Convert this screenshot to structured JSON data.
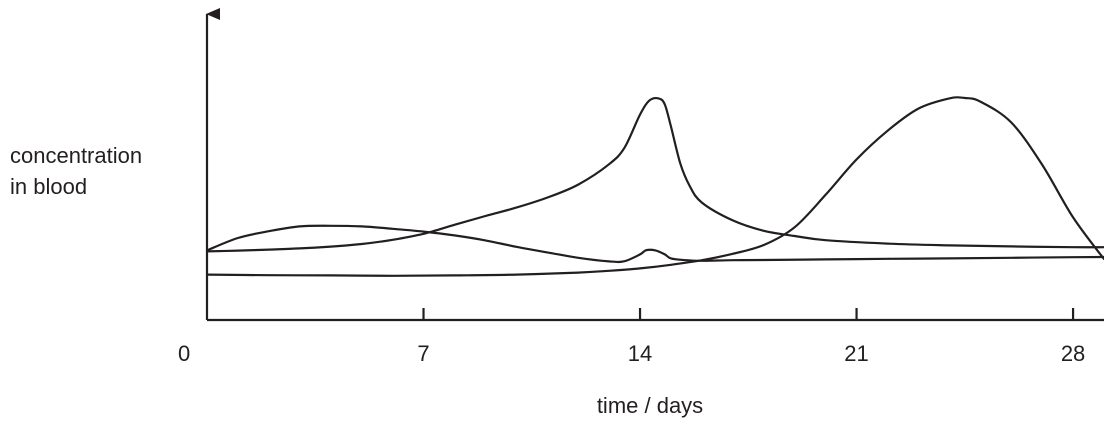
{
  "chart_data": {
    "type": "line",
    "title": "",
    "xlabel": "time / days",
    "ylabel_lines": [
      "concentration",
      "in blood"
    ],
    "origin_label": "0",
    "x_ticks": [
      7,
      14,
      21,
      28
    ],
    "x_tick_labels": [
      "7",
      "14",
      "21",
      "28"
    ],
    "xlim": [
      0,
      29
    ],
    "ylim": [
      0,
      100
    ],
    "grid": false,
    "legend": "none",
    "series": [
      {
        "x": [
          0,
          1,
          2,
          3,
          4,
          5,
          6,
          7,
          8,
          9,
          10,
          11,
          12,
          13,
          13.5,
          14,
          14.3,
          14.6,
          14.8,
          15,
          15.3,
          15.6,
          16,
          17,
          18,
          19,
          20,
          22,
          24,
          26,
          28,
          29
        ],
        "y": [
          22.8,
          23.2,
          23.7,
          24.3,
          25.2,
          26.5,
          28.6,
          31.6,
          36.1,
          40.5,
          44.7,
          49.7,
          56.2,
          66.4,
          74.7,
          91.2,
          98.2,
          99.3,
          96.3,
          85.2,
          66.9,
          55.7,
          47.2,
          38.3,
          33.1,
          30.5,
          28.4,
          26.7,
          25.8,
          25.3,
          24.9,
          24.9
        ]
      },
      {
        "x": [
          0,
          1,
          2,
          3,
          4,
          5,
          6,
          7,
          8,
          9,
          10,
          11,
          12,
          13,
          13.5,
          14,
          14.2,
          14.5,
          14.8,
          15,
          15.5,
          16,
          17,
          18,
          20,
          22,
          24,
          26,
          28,
          29
        ],
        "y": [
          23.3,
          29.5,
          32.9,
          35.3,
          35.6,
          35.3,
          34.1,
          32.7,
          30.8,
          28.3,
          25.1,
          22.3,
          19.6,
          17.8,
          17.9,
          21.3,
          23.4,
          23.3,
          21.3,
          19.3,
          18.4,
          18.1,
          18.4,
          18.5,
          18.8,
          19.1,
          19.3,
          19.6,
          19.9,
          20.0
        ]
      },
      {
        "x": [
          0,
          2,
          4,
          6,
          8,
          10,
          12,
          13,
          14,
          15,
          16,
          17,
          18,
          19,
          20,
          21,
          22,
          23,
          24,
          24.5,
          25,
          26,
          27,
          28,
          29
        ],
        "y": [
          11.2,
          10.9,
          10.8,
          10.6,
          10.8,
          11.2,
          12.2,
          13.1,
          14.3,
          16.1,
          18.4,
          21.6,
          26.0,
          34.9,
          51.1,
          68.8,
          83.1,
          94.2,
          99.3,
          99.5,
          97.7,
          87.3,
          66.2,
          39.8,
          19.0
        ]
      }
    ]
  }
}
